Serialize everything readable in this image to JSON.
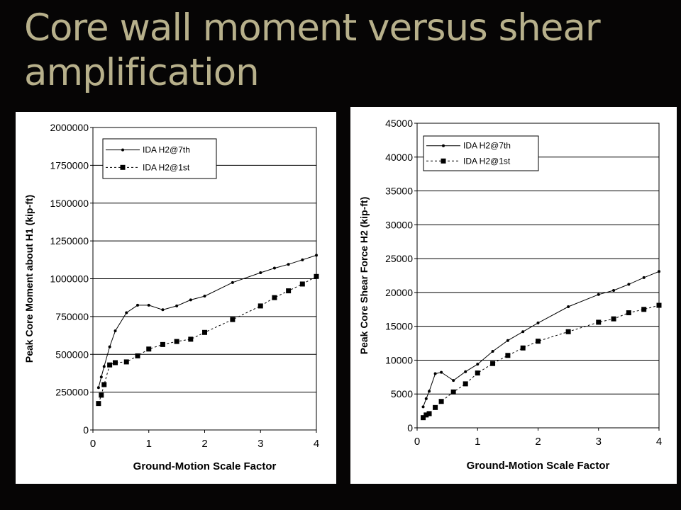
{
  "slide": {
    "title_line1": "Core wall moment versus shear",
    "title_line2": "amplification"
  },
  "colors": {
    "background": "#060505",
    "title": "#b7b08b",
    "panel": "#ffffff",
    "ink": "#000000"
  },
  "chart_data": [
    {
      "type": "line",
      "xlabel": "Ground-Motion Scale Factor",
      "ylabel": "Peak Core Moment about H1 (kip-ft)",
      "xlim": [
        0,
        4
      ],
      "ylim": [
        0,
        2000000
      ],
      "x_ticks": [
        0,
        1,
        2,
        3,
        4
      ],
      "y_ticks": [
        0,
        250000,
        500000,
        750000,
        1000000,
        1250000,
        1500000,
        1750000,
        2000000
      ],
      "grid": "horizontal",
      "legend_position": "top-left",
      "series": [
        {
          "name": "IDA H2@7th",
          "marker": "dot",
          "line": "solid",
          "x": [
            0.1,
            0.15,
            0.2,
            0.3,
            0.4,
            0.6,
            0.8,
            1.0,
            1.25,
            1.5,
            1.75,
            2.0,
            2.5,
            3.0,
            3.25,
            3.5,
            3.75,
            4.0
          ],
          "y": [
            280000,
            350000,
            420000,
            550000,
            655000,
            775000,
            825000,
            825000,
            795000,
            820000,
            860000,
            885000,
            975000,
            1040000,
            1070000,
            1095000,
            1125000,
            1155000
          ]
        },
        {
          "name": "IDA H2@1st",
          "marker": "square",
          "line": "dashed",
          "x": [
            0.1,
            0.15,
            0.2,
            0.3,
            0.4,
            0.6,
            0.8,
            1.0,
            1.25,
            1.5,
            1.75,
            2.0,
            2.5,
            3.0,
            3.25,
            3.5,
            3.75,
            4.0
          ],
          "y": [
            175000,
            230000,
            300000,
            430000,
            445000,
            450000,
            490000,
            535000,
            565000,
            585000,
            600000,
            645000,
            730000,
            820000,
            875000,
            920000,
            965000,
            1015000
          ]
        }
      ]
    },
    {
      "type": "line",
      "xlabel": "Ground-Motion Scale Factor",
      "ylabel": "Peak Core Shear Force H2 (kip-ft)",
      "xlim": [
        0,
        4
      ],
      "ylim": [
        0,
        45000
      ],
      "x_ticks": [
        0,
        1,
        2,
        3,
        4
      ],
      "y_ticks": [
        0,
        5000,
        10000,
        15000,
        20000,
        25000,
        30000,
        35000,
        40000,
        45000
      ],
      "grid": "horizontal",
      "legend_position": "top-left",
      "series": [
        {
          "name": "IDA H2@7th",
          "marker": "dot",
          "line": "solid",
          "x": [
            0.1,
            0.15,
            0.2,
            0.3,
            0.4,
            0.6,
            0.8,
            1.0,
            1.25,
            1.5,
            1.75,
            2.0,
            2.5,
            3.0,
            3.25,
            3.5,
            3.75,
            4.0
          ],
          "y": [
            3100,
            4300,
            5400,
            8000,
            8200,
            7000,
            8300,
            9400,
            11300,
            12900,
            14200,
            15500,
            17900,
            19700,
            20300,
            21200,
            22200,
            23100
          ]
        },
        {
          "name": "IDA H2@1st",
          "marker": "square",
          "line": "dashed",
          "x": [
            0.1,
            0.15,
            0.2,
            0.3,
            0.4,
            0.6,
            0.8,
            1.0,
            1.25,
            1.5,
            1.75,
            2.0,
            2.5,
            3.0,
            3.25,
            3.5,
            3.75,
            4.0
          ],
          "y": [
            1500,
            1900,
            2100,
            3000,
            3900,
            5300,
            6500,
            8100,
            9500,
            10700,
            11800,
            12800,
            14200,
            15600,
            16100,
            17000,
            17500,
            18100
          ]
        }
      ]
    }
  ]
}
